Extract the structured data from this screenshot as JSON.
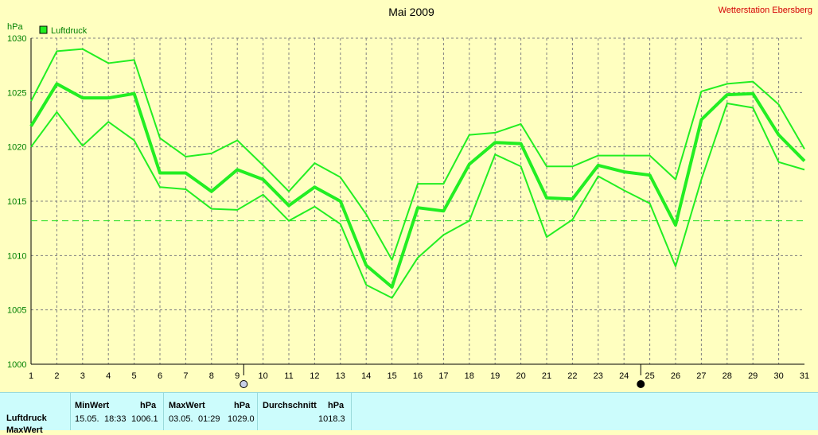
{
  "header": {
    "title": "Mai 2009",
    "station": "Wetterstation Ebersberg",
    "unit": "hPa"
  },
  "legend": {
    "label": "Luftdruck",
    "color": "#22ee22"
  },
  "chart_data": {
    "type": "line",
    "title": "Mai 2009",
    "ylabel": "hPa",
    "xlabel": "",
    "x": [
      1,
      2,
      3,
      4,
      5,
      6,
      7,
      8,
      9,
      10,
      11,
      12,
      13,
      14,
      15,
      16,
      17,
      18,
      19,
      20,
      21,
      22,
      23,
      24,
      25,
      26,
      27,
      28,
      29,
      30,
      31
    ],
    "xlim": [
      1,
      31
    ],
    "ylim": [
      1000,
      1030
    ],
    "yticks": [
      1000,
      1005,
      1010,
      1015,
      1020,
      1025,
      1030
    ],
    "grid": true,
    "legend_position": "top-left",
    "series": [
      {
        "name": "Luftdruck",
        "role": "max",
        "width": 2,
        "values": [
          1024.2,
          1028.8,
          1029.0,
          1027.7,
          1028.0,
          1020.8,
          1019.1,
          1019.4,
          1020.6,
          1018.3,
          1015.9,
          1018.5,
          1017.2,
          1013.8,
          1009.6,
          1016.6,
          1016.6,
          1021.1,
          1021.3,
          1022.1,
          1018.2,
          1018.2,
          1019.2,
          1019.2,
          1019.2,
          1017.0,
          1025.1,
          1025.8,
          1026.0,
          1023.9,
          1019.8
        ]
      },
      {
        "name": "Luftdruck",
        "role": "mean",
        "width": 4,
        "values": [
          1021.9,
          1025.8,
          1024.5,
          1024.5,
          1024.9,
          1017.6,
          1017.6,
          1015.9,
          1017.9,
          1017.0,
          1014.6,
          1016.3,
          1015.0,
          1009.1,
          1007.1,
          1014.4,
          1014.1,
          1018.4,
          1020.4,
          1020.3,
          1015.3,
          1015.2,
          1018.3,
          1017.7,
          1017.4,
          1012.8,
          1022.5,
          1024.8,
          1024.9,
          1021.1,
          1018.7
        ]
      },
      {
        "name": "Luftdruck",
        "role": "min",
        "width": 2,
        "values": [
          1020.0,
          1023.2,
          1020.1,
          1022.3,
          1020.6,
          1016.3,
          1016.1,
          1014.3,
          1014.2,
          1015.6,
          1013.2,
          1014.5,
          1012.9,
          1007.3,
          1006.1,
          1009.8,
          1011.9,
          1013.2,
          1019.3,
          1018.2,
          1011.7,
          1013.3,
          1017.3,
          1016.0,
          1014.8,
          1009.0,
          1017.0,
          1024.0,
          1023.6,
          1018.6,
          1017.9
        ]
      }
    ],
    "reference_line": {
      "value": 1013.2,
      "style": "dashed"
    },
    "markers": [
      {
        "x": 9.25,
        "symbol": "full-moon"
      },
      {
        "x": 24.65,
        "symbol": "new-moon"
      }
    ]
  },
  "stats": {
    "row_label": "Luftdruck",
    "row2_label": "MaxWert",
    "min": {
      "header": "MinWert",
      "unit": "hPa",
      "date": "15.05.",
      "time": "18:33",
      "value": "1006.1"
    },
    "max": {
      "header": "MaxWert",
      "unit": "hPa",
      "date": "03.05.",
      "time": "01:29",
      "value": "1029.0"
    },
    "avg": {
      "header": "Durchschnitt",
      "unit": "hPa",
      "value": "1018.3"
    }
  }
}
